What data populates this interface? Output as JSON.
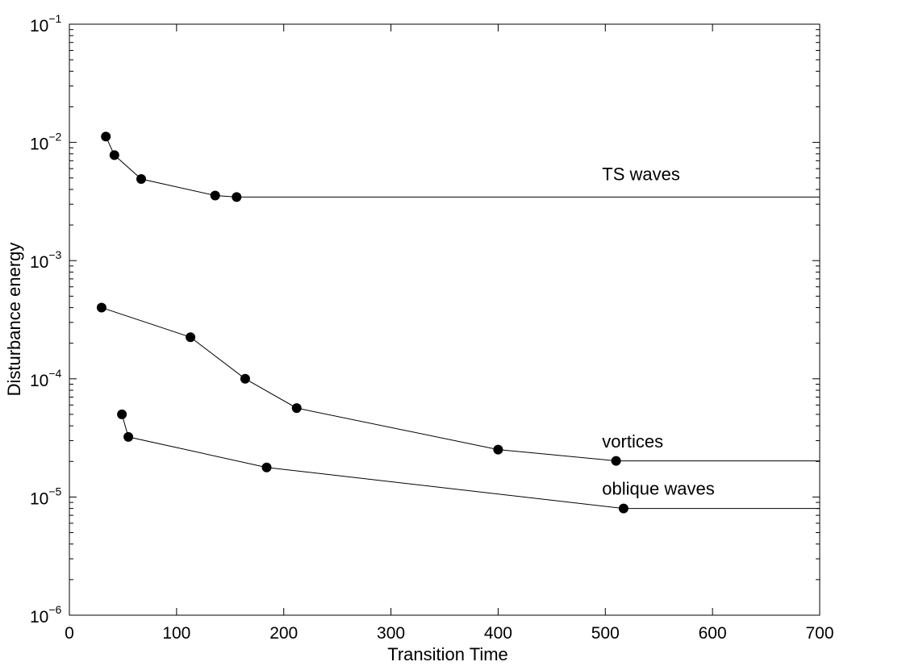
{
  "chart_data": {
    "type": "line",
    "xlabel": "Transition Time",
    "ylabel": "Disturbance energy",
    "xlim": [
      0,
      700
    ],
    "ylim": [
      1e-06,
      0.1
    ],
    "yscale": "log",
    "grid": false,
    "x_ticks": [
      {
        "value": 0,
        "label": "0"
      },
      {
        "value": 100,
        "label": "100"
      },
      {
        "value": 200,
        "label": "200"
      },
      {
        "value": 300,
        "label": "300"
      },
      {
        "value": 400,
        "label": "400"
      },
      {
        "value": 500,
        "label": "500"
      },
      {
        "value": 600,
        "label": "600"
      },
      {
        "value": 700,
        "label": "700"
      }
    ],
    "y_ticks": [
      {
        "value": 1e-06,
        "base": "10",
        "exp": "−6"
      },
      {
        "value": 1e-05,
        "base": "10",
        "exp": "−5"
      },
      {
        "value": 0.0001,
        "base": "10",
        "exp": "−4"
      },
      {
        "value": 0.001,
        "base": "10",
        "exp": "−3"
      },
      {
        "value": 0.01,
        "base": "10",
        "exp": "−2"
      },
      {
        "value": 0.1,
        "base": "10",
        "exp": "−1"
      }
    ],
    "series": [
      {
        "name": "TS waves",
        "x": [
          34,
          42,
          67,
          136,
          156
        ],
        "y": [
          0.0112,
          0.0078,
          0.0049,
          0.00355,
          0.00345
        ],
        "extend_to_x": 700
      },
      {
        "name": "vortices",
        "x": [
          30,
          113,
          164,
          212,
          400,
          510
        ],
        "y": [
          0.0004,
          0.000225,
          0.0001,
          5.65e-05,
          2.52e-05,
          2.02e-05
        ],
        "extend_to_x": 700
      },
      {
        "name": "oblique waves",
        "x": [
          49,
          55,
          184,
          517
        ],
        "y": [
          5e-05,
          3.22e-05,
          1.78e-05,
          8e-06
        ],
        "extend_to_x": 700
      }
    ],
    "annotations": [
      {
        "text": "TS waves",
        "x": 497,
        "y": 0.0048
      },
      {
        "text": "vortices",
        "x": 497,
        "y": 2.62e-05
      },
      {
        "text": "oblique waves",
        "x": 497,
        "y": 1.05e-05
      }
    ]
  }
}
